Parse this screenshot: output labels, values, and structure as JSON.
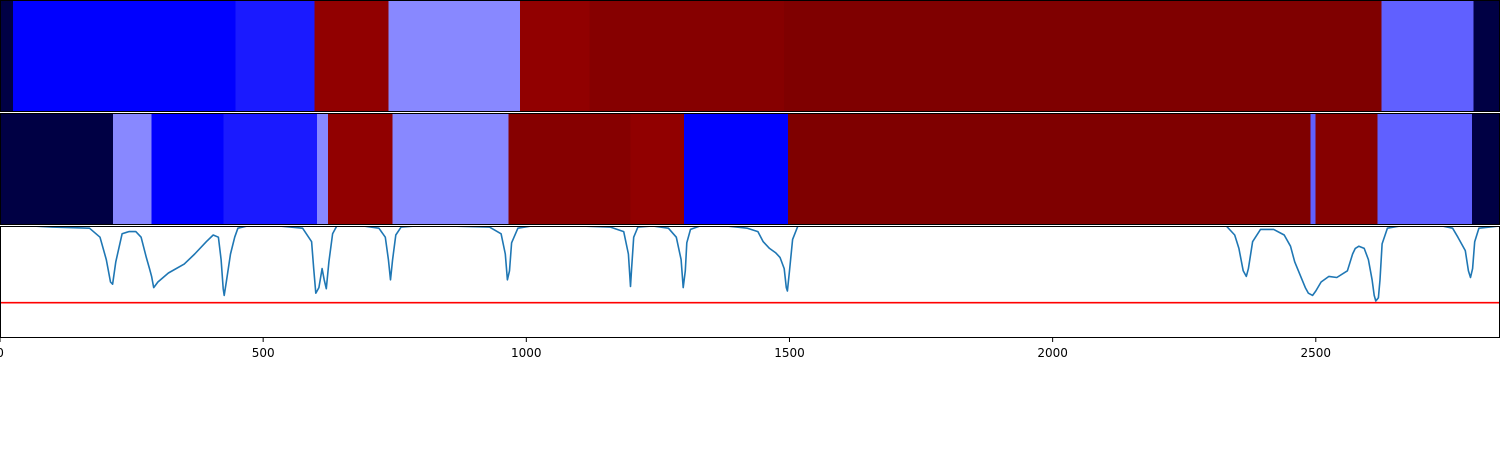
{
  "chart_data": [
    {
      "type": "heatmap",
      "title": "",
      "xlim": [
        0,
        2850
      ],
      "segments": [
        {
          "start": 0,
          "end": 25,
          "color": "#000044"
        },
        {
          "start": 25,
          "end": 447,
          "color": "#0000ff"
        },
        {
          "start": 447,
          "end": 598,
          "color": "#1a1aff"
        },
        {
          "start": 598,
          "end": 738,
          "color": "#910000"
        },
        {
          "start": 738,
          "end": 988,
          "color": "#8888ff"
        },
        {
          "start": 988,
          "end": 1120,
          "color": "#910000"
        },
        {
          "start": 1120,
          "end": 1490,
          "color": "#860000"
        },
        {
          "start": 1490,
          "end": 2625,
          "color": "#7f0000"
        },
        {
          "start": 2625,
          "end": 2800,
          "color": "#6060ff"
        },
        {
          "start": 2800,
          "end": 2850,
          "color": "#000044"
        }
      ]
    },
    {
      "type": "heatmap",
      "title": "",
      "xlim": [
        0,
        2850
      ],
      "segments": [
        {
          "start": 0,
          "end": 215,
          "color": "#000044"
        },
        {
          "start": 215,
          "end": 288,
          "color": "#8888ff"
        },
        {
          "start": 288,
          "end": 425,
          "color": "#0000ff"
        },
        {
          "start": 425,
          "end": 602,
          "color": "#1a1aff"
        },
        {
          "start": 602,
          "end": 623,
          "color": "#8888ff"
        },
        {
          "start": 623,
          "end": 746,
          "color": "#910000"
        },
        {
          "start": 746,
          "end": 966,
          "color": "#8888ff"
        },
        {
          "start": 966,
          "end": 1198,
          "color": "#860000"
        },
        {
          "start": 1198,
          "end": 1300,
          "color": "#910000"
        },
        {
          "start": 1300,
          "end": 1497,
          "color": "#0000ff"
        },
        {
          "start": 1497,
          "end": 2490,
          "color": "#7f0000"
        },
        {
          "start": 2490,
          "end": 2499,
          "color": "#6060ff"
        },
        {
          "start": 2499,
          "end": 2617,
          "color": "#860000"
        },
        {
          "start": 2617,
          "end": 2797,
          "color": "#6060ff"
        },
        {
          "start": 2797,
          "end": 2850,
          "color": "#000044"
        }
      ]
    },
    {
      "type": "line",
      "title": "",
      "xlabel": "",
      "ylabel": "",
      "xlim": [
        0,
        2850
      ],
      "ylim": [
        0,
        1
      ],
      "xticks": [
        0,
        500,
        1000,
        1500,
        2000,
        2500
      ],
      "xtick_labels": [
        "0",
        "500",
        "1000",
        "1500",
        "2000",
        "2500"
      ],
      "grid": false,
      "series": [
        {
          "color": "#1f77b4",
          "x": [
            0,
            60,
            100,
            170,
            190,
            202,
            210,
            214,
            220,
            232,
            245,
            258,
            268,
            278,
            284,
            288,
            292,
            300,
            320,
            350,
            370,
            392,
            405,
            415,
            420,
            424,
            426,
            430,
            438,
            446,
            452,
            470,
            530,
            575,
            592,
            596,
            600,
            606,
            612,
            616,
            620,
            625,
            632,
            640,
            660,
            690,
            720,
            732,
            738,
            742,
            746,
            752,
            762,
            790,
            850,
            930,
            952,
            960,
            964,
            968,
            972,
            984,
            1010,
            1100,
            1160,
            1185,
            1194,
            1198,
            1200,
            1204,
            1212,
            1240,
            1270,
            1285,
            1294,
            1298,
            1302,
            1305,
            1312,
            1330,
            1380,
            1420,
            1440,
            1450,
            1462,
            1474,
            1482,
            1490,
            1494,
            1496,
            1500,
            1506,
            1516
          ],
          "values": [
            1.0,
            1.0,
            0.99,
            0.98,
            0.9,
            0.7,
            0.5,
            0.48,
            0.68,
            0.93,
            0.95,
            0.95,
            0.9,
            0.72,
            0.62,
            0.55,
            0.45,
            0.5,
            0.58,
            0.66,
            0.75,
            0.86,
            0.92,
            0.9,
            0.7,
            0.44,
            0.38,
            0.5,
            0.75,
            0.9,
            0.98,
            1.0,
            1.0,
            0.98,
            0.86,
            0.62,
            0.4,
            0.45,
            0.62,
            0.52,
            0.44,
            0.68,
            0.93,
            1.0,
            1.0,
            1.0,
            0.98,
            0.9,
            0.7,
            0.52,
            0.7,
            0.92,
            0.99,
            1.0,
            1.0,
            0.99,
            0.93,
            0.75,
            0.52,
            0.6,
            0.85,
            0.98,
            1.0,
            1.0,
            0.99,
            0.95,
            0.75,
            0.46,
            0.62,
            0.9,
            0.99,
            1.0,
            0.98,
            0.9,
            0.7,
            0.45,
            0.6,
            0.85,
            0.97,
            1.0,
            1.0,
            0.98,
            0.95,
            0.86,
            0.8,
            0.76,
            0.72,
            0.62,
            0.45,
            0.42,
            0.6,
            0.88,
            1.0
          ]
        },
        {
          "color": "#1f77b4",
          "x": [
            2330,
            2346,
            2354,
            2362,
            2368,
            2372,
            2380,
            2395,
            2420,
            2440,
            2452,
            2460,
            2467,
            2474,
            2480,
            2486,
            2494,
            2500,
            2510,
            2525,
            2540,
            2560,
            2570,
            2575,
            2582,
            2592,
            2600,
            2607,
            2611,
            2614,
            2619,
            2622,
            2626,
            2636,
            2660,
            2700,
            2740,
            2760,
            2770,
            2784,
            2790,
            2794,
            2798,
            2802,
            2810,
            2850
          ],
          "values": [
            1.0,
            0.92,
            0.8,
            0.6,
            0.55,
            0.62,
            0.86,
            0.97,
            0.97,
            0.92,
            0.82,
            0.68,
            0.6,
            0.52,
            0.45,
            0.4,
            0.38,
            0.42,
            0.5,
            0.55,
            0.54,
            0.6,
            0.75,
            0.8,
            0.82,
            0.8,
            0.7,
            0.52,
            0.38,
            0.33,
            0.36,
            0.52,
            0.84,
            0.98,
            1.0,
            1.0,
            1.0,
            0.98,
            0.9,
            0.78,
            0.6,
            0.54,
            0.62,
            0.86,
            0.98,
            1.0
          ]
        }
      ],
      "hlines": [
        {
          "y": 0.315,
          "color": "#ff0000"
        }
      ]
    }
  ]
}
